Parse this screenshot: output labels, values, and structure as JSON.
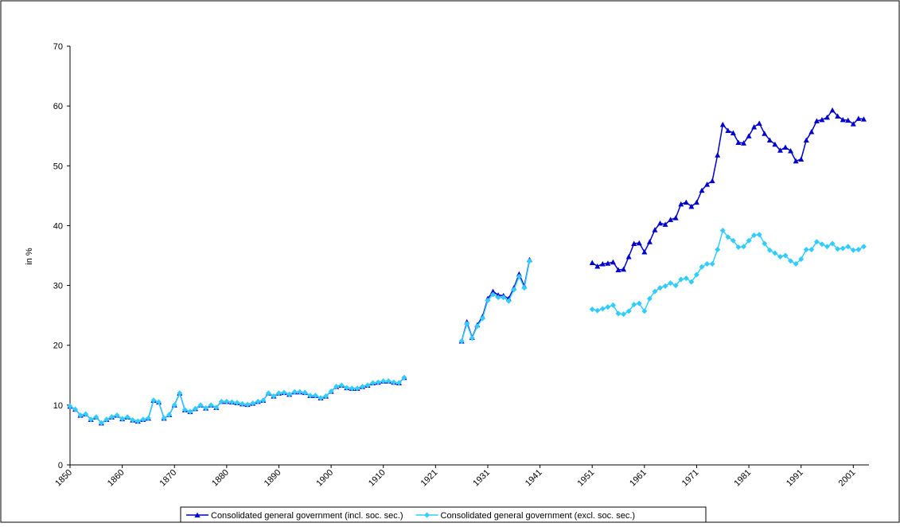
{
  "chart_data": {
    "type": "line",
    "y_label": "in %",
    "categories": [
      "1850",
      null,
      null,
      null,
      null,
      null,
      null,
      null,
      null,
      null,
      "1860",
      null,
      null,
      null,
      null,
      null,
      null,
      null,
      null,
      null,
      "1870",
      null,
      null,
      null,
      null,
      null,
      null,
      null,
      null,
      null,
      "1880",
      null,
      null,
      null,
      null,
      null,
      null,
      null,
      null,
      null,
      "1890",
      null,
      null,
      null,
      null,
      null,
      null,
      null,
      null,
      null,
      "1900",
      null,
      null,
      null,
      null,
      null,
      null,
      null,
      null,
      null,
      "1910",
      null,
      null,
      null,
      null,
      null,
      null,
      null,
      null,
      null,
      "1921",
      null,
      null,
      null,
      null,
      null,
      null,
      null,
      null,
      null,
      "1931",
      null,
      null,
      null,
      null,
      null,
      null,
      null,
      null,
      null,
      "1941",
      null,
      null,
      null,
      null,
      null,
      null,
      null,
      null,
      null,
      "1951",
      null,
      null,
      null,
      null,
      null,
      null,
      null,
      null,
      null,
      "1961",
      null,
      null,
      null,
      null,
      null,
      null,
      null,
      null,
      null,
      "1971",
      null,
      null,
      null,
      null,
      null,
      null,
      null,
      null,
      null,
      "1981",
      null,
      null,
      null,
      null,
      null,
      null,
      null,
      null,
      null,
      "1991",
      null,
      null,
      null,
      null,
      null,
      null,
      null,
      null,
      null,
      "2001",
      null,
      null
    ],
    "series": [
      {
        "name": "Consolidated general government (incl. soc. sec.)",
        "color": "#0000CC",
        "marker": "triangle",
        "values": [
          9.8,
          9.3,
          8.3,
          8.5,
          7.6,
          8.0,
          7.0,
          7.6,
          8.0,
          8.3,
          7.7,
          8.0,
          7.5,
          7.3,
          7.6,
          7.8,
          10.8,
          10.5,
          7.8,
          8.4,
          10.0,
          12.0,
          9.2,
          8.9,
          9.4,
          10.0,
          9.5,
          10.0,
          9.6,
          10.6,
          10.6,
          10.5,
          10.4,
          10.2,
          10.1,
          10.3,
          10.6,
          10.8,
          12.0,
          11.5,
          12.0,
          12.1,
          11.8,
          12.2,
          12.2,
          12.1,
          11.6,
          11.6,
          11.2,
          11.5,
          12.3,
          13.1,
          13.3,
          12.9,
          12.8,
          12.8,
          13.1,
          13.3,
          13.7,
          13.8,
          14.0,
          14.0,
          13.8,
          13.7,
          14.6,
          null,
          null,
          null,
          null,
          null,
          null,
          null,
          null,
          null,
          null,
          20.7,
          23.9,
          21.3,
          23.4,
          24.8,
          27.8,
          29.0,
          28.4,
          28.3,
          27.8,
          29.6,
          31.9,
          29.9,
          34.3,
          null,
          null,
          null,
          null,
          null,
          null,
          null,
          null,
          null,
          null,
          null,
          33.8,
          33.2,
          33.6,
          33.7,
          33.9,
          32.6,
          32.7,
          34.8,
          37.0,
          37.1,
          35.6,
          37.3,
          39.3,
          40.4,
          40.2,
          41.0,
          41.3,
          43.6,
          43.9,
          43.2,
          43.9,
          45.9,
          46.9,
          47.5,
          51.8,
          56.9,
          55.9,
          55.5,
          53.9,
          53.8,
          55.0,
          56.5,
          57.1,
          55.4,
          54.3,
          53.6,
          52.6,
          53.1,
          52.5,
          50.8,
          51.1,
          54.3,
          55.7,
          57.5,
          57.7,
          58.1,
          59.3,
          58.3,
          57.7,
          57.6,
          57.0,
          57.9,
          57.8
        ]
      },
      {
        "name": "Consolidated general government (excl. soc. sec.)",
        "color": "#33CCFF",
        "marker": "diamond",
        "values": [
          9.8,
          9.3,
          8.3,
          8.5,
          7.6,
          8.0,
          7.0,
          7.6,
          8.0,
          8.3,
          7.7,
          8.0,
          7.5,
          7.3,
          7.6,
          7.8,
          10.8,
          10.5,
          7.8,
          8.4,
          10.0,
          12.0,
          9.2,
          8.9,
          9.4,
          10.0,
          9.5,
          10.0,
          9.6,
          10.6,
          10.6,
          10.5,
          10.4,
          10.2,
          10.1,
          10.3,
          10.6,
          10.8,
          12.0,
          11.5,
          12.0,
          12.1,
          11.8,
          12.2,
          12.2,
          12.1,
          11.6,
          11.6,
          11.2,
          11.5,
          12.3,
          13.1,
          13.3,
          12.9,
          12.8,
          12.8,
          13.1,
          13.3,
          13.7,
          13.8,
          14.0,
          14.0,
          13.8,
          13.7,
          14.6,
          null,
          null,
          null,
          null,
          null,
          null,
          null,
          null,
          null,
          null,
          20.7,
          23.6,
          21.2,
          23.2,
          24.5,
          27.5,
          28.5,
          28.0,
          28.0,
          27.4,
          29.3,
          31.5,
          29.6,
          34.1,
          null,
          null,
          null,
          null,
          null,
          null,
          null,
          null,
          null,
          null,
          null,
          26.0,
          25.8,
          26.1,
          26.4,
          26.7,
          25.3,
          25.2,
          25.7,
          26.8,
          27.0,
          25.7,
          27.8,
          29.0,
          29.6,
          29.9,
          30.4,
          30.0,
          31.0,
          31.2,
          30.6,
          31.8,
          33.1,
          33.6,
          33.6,
          36.0,
          39.2,
          38.1,
          37.5,
          36.4,
          36.5,
          37.5,
          38.4,
          38.5,
          37.0,
          35.9,
          35.4,
          34.8,
          35.0,
          34.1,
          33.6,
          34.4,
          36.0,
          36.0,
          37.3,
          36.9,
          36.5,
          37.0,
          36.1,
          36.2,
          36.5,
          35.9,
          36.0,
          36.5
        ]
      }
    ],
    "ylim": [
      0,
      70
    ],
    "yticks": [
      0,
      10,
      20,
      30,
      40,
      50,
      60,
      70
    ],
    "grid": false,
    "legend": "bottom"
  }
}
